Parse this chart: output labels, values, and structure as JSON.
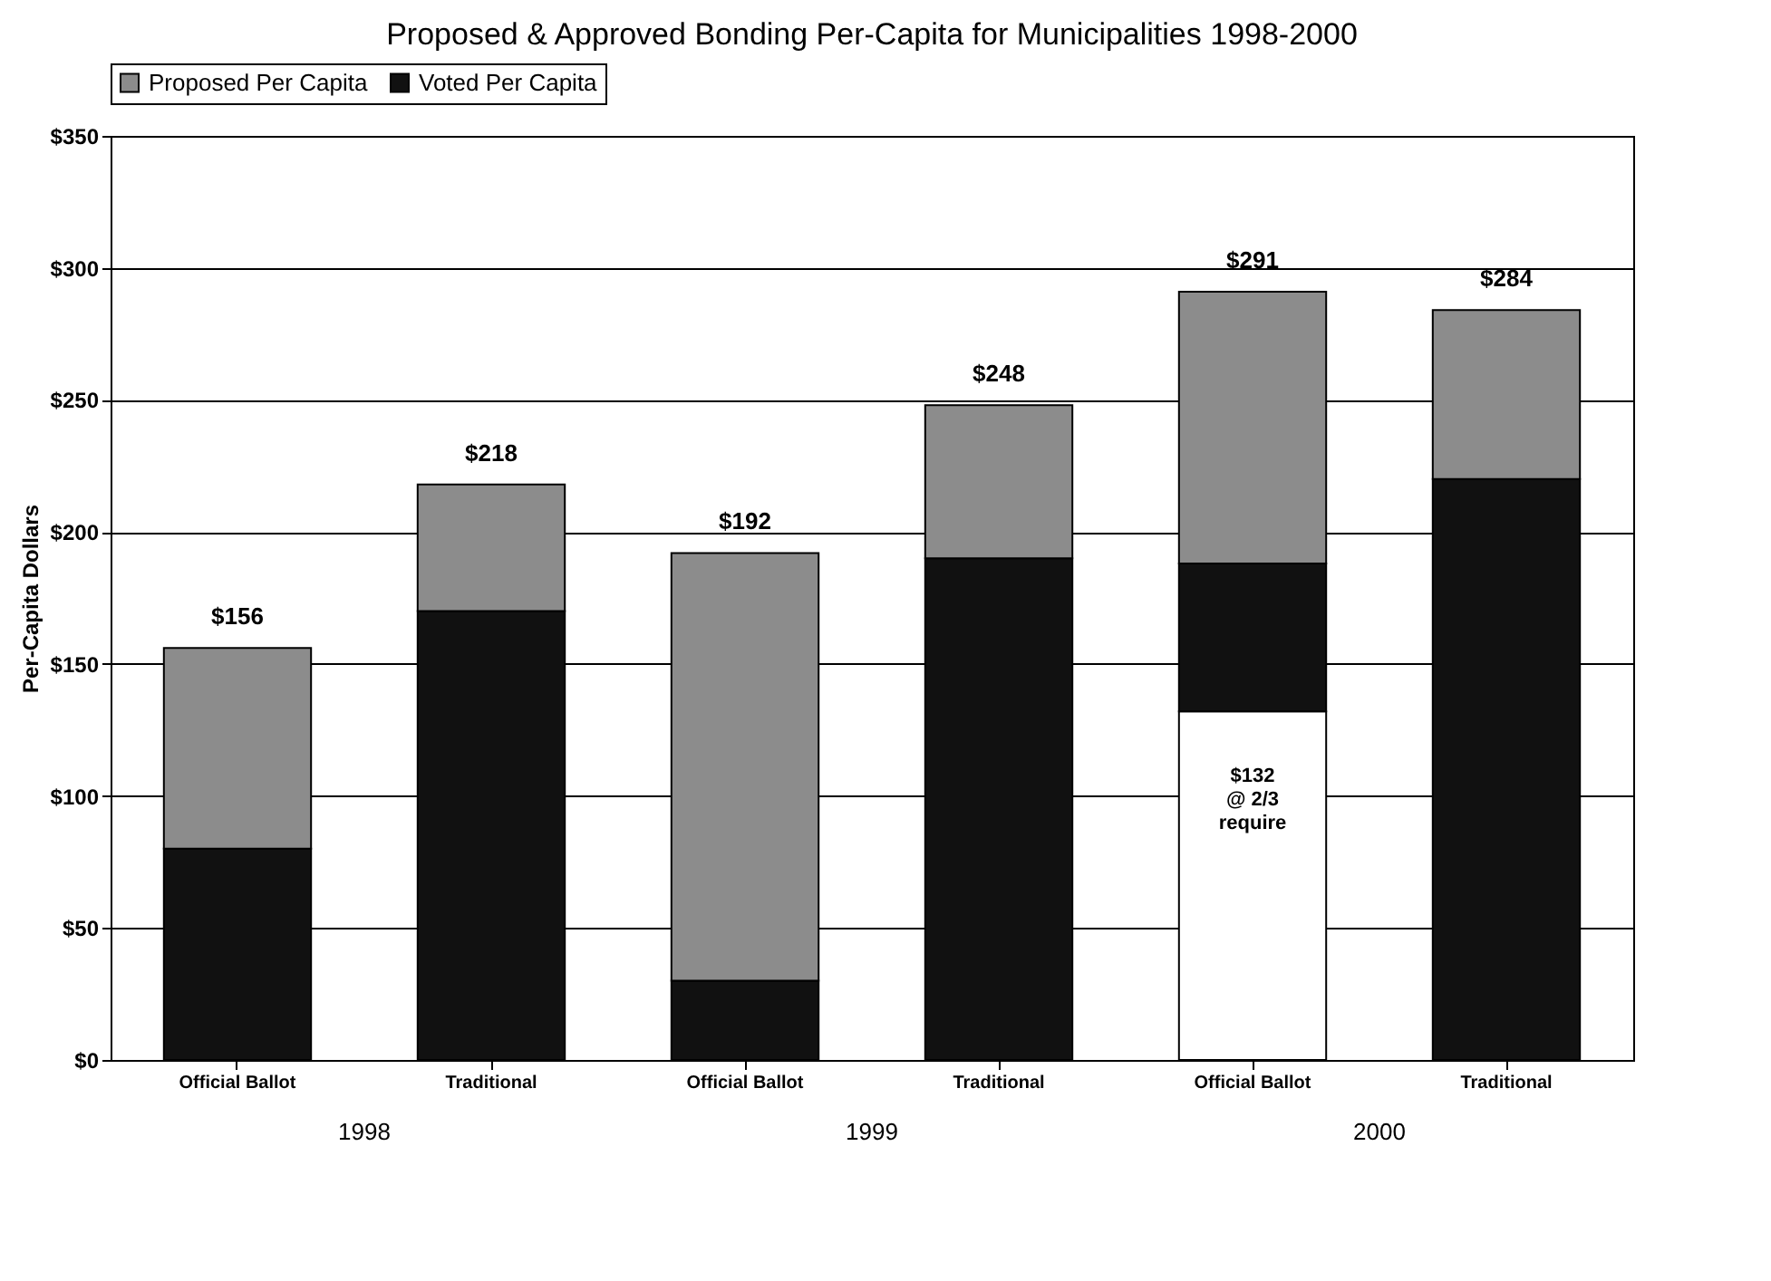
{
  "chart_data": {
    "type": "bar",
    "stacked": true,
    "title": "Proposed & Approved Bonding Per-Capita for Municipalities 1998-2000",
    "ylabel": "Per-Capita Dollars",
    "categories": [
      "Official Ballot",
      "Traditional",
      "Official Ballot",
      "Traditional",
      "Official Ballot",
      "Traditional"
    ],
    "series": [
      {
        "color": "#ffffff",
        "values": [
          null,
          null,
          null,
          null,
          132,
          null
        ],
        "value_labels": [
          null,
          null,
          null,
          null,
          "$132\n@ 2/3\nrequire",
          null
        ]
      },
      {
        "name": "Voted Per Capita",
        "color": "#111111",
        "values": [
          80,
          170,
          30,
          190,
          56,
          220
        ]
      },
      {
        "name": "Proposed Per Capita",
        "color": "#8c8c8c",
        "values": [
          76,
          48,
          162,
          58,
          103,
          64
        ]
      }
    ],
    "totals": [
      "$156",
      "$218",
      "$192",
      "$248",
      "$291",
      "$284"
    ],
    "annotations": [
      "1998",
      "1999",
      "2000"
    ],
    "ylim": [
      0,
      350
    ],
    "yticks": [
      {
        "value": 0,
        "label": "$0"
      },
      {
        "value": 50,
        "label": "$50"
      },
      {
        "value": 100,
        "label": "$100"
      },
      {
        "value": 150,
        "label": "$150"
      },
      {
        "value": 200,
        "label": "$200"
      },
      {
        "value": 250,
        "label": "$250"
      },
      {
        "value": 300,
        "label": "$300"
      },
      {
        "value": 350,
        "label": "$350"
      }
    ],
    "grid": "y",
    "legend": "top"
  }
}
